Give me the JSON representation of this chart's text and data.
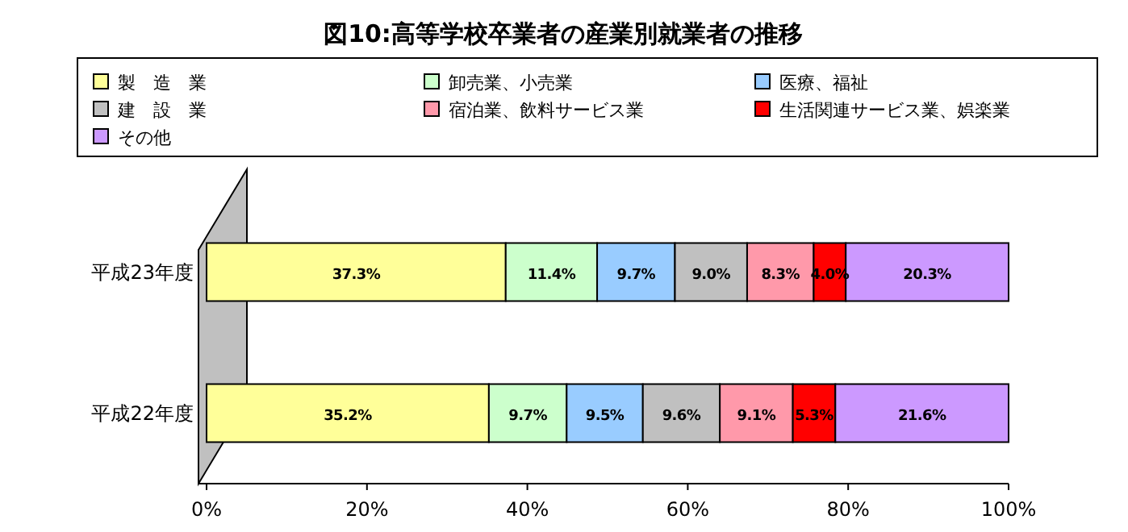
{
  "chart_data": {
    "type": "bar",
    "orientation": "horizontal",
    "stacked": true,
    "title": "図10:高等学校卒業者の産業別就業者の推移",
    "categories": [
      "平成23年度",
      "平成22年度"
    ],
    "series": [
      {
        "name": "製　造　業",
        "color": "#ffff99",
        "values": [
          37.3,
          35.2
        ],
        "value_labels": [
          "37.3%",
          "35.2%"
        ]
      },
      {
        "name": "卸売業、小売業",
        "color": "#ccffcc",
        "values": [
          11.4,
          9.7
        ],
        "value_labels": [
          "11.4%",
          "9.7%"
        ]
      },
      {
        "name": "医療、福祉",
        "color": "#99ccff",
        "values": [
          9.7,
          9.5
        ],
        "value_labels": [
          "9.7%",
          "9.5%"
        ]
      },
      {
        "name": "建　設　業",
        "color": "#c0c0c0",
        "values": [
          9.0,
          9.6
        ],
        "value_labels": [
          "9.0%",
          "9.6%"
        ]
      },
      {
        "name": "宿泊業、飲料サービス業",
        "color": "#ff99aa",
        "values": [
          8.3,
          9.1
        ],
        "value_labels": [
          "8.3%",
          "9.1%"
        ]
      },
      {
        "name": "生活関連サービス業、娯楽業",
        "color": "#ff0000",
        "values": [
          4.0,
          5.3
        ],
        "value_labels": [
          "4.0%",
          "5.3%"
        ]
      },
      {
        "name": "その他",
        "color": "#cc99ff",
        "values": [
          20.3,
          21.6
        ],
        "value_labels": [
          "20.3%",
          "21.6%"
        ]
      }
    ],
    "xlim": [
      0,
      100
    ],
    "xticks": [
      {
        "value": 0,
        "label": "0%"
      },
      {
        "value": 20,
        "label": "20%"
      },
      {
        "value": 40,
        "label": "40%"
      },
      {
        "value": 60,
        "label": "60%"
      },
      {
        "value": 80,
        "label": "80%"
      },
      {
        "value": 100,
        "label": "100%"
      }
    ],
    "legend": "top"
  }
}
